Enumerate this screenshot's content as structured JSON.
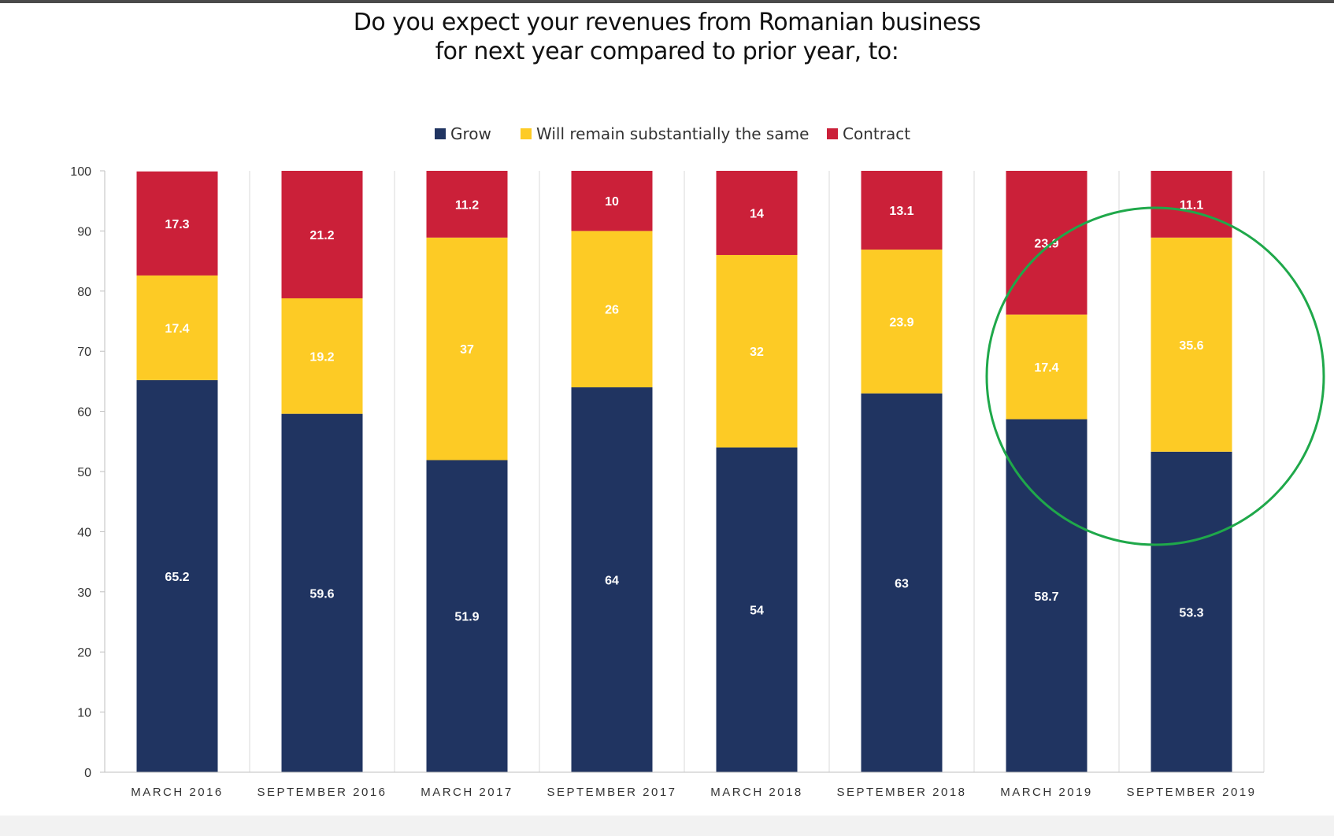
{
  "title_lines": [
    "Do you expect your revenues from Romanian business",
    "for next year compared to prior year, to:"
  ],
  "chart_data": {
    "type": "bar",
    "stacked": true,
    "title": "Do you expect your revenues from Romanian business for next year compared to prior year, to:",
    "categories": [
      "MARCH 2016",
      "SEPTEMBER 2016",
      "MARCH 2017",
      "SEPTEMBER 2017",
      "MARCH 2018",
      "SEPTEMBER 2018",
      "MARCH 2019",
      "SEPTEMBER 2019"
    ],
    "series": [
      {
        "name": "Grow",
        "color": "#203461",
        "values": [
          65.2,
          59.6,
          51.9,
          64,
          54,
          63,
          58.7,
          53.3
        ]
      },
      {
        "name": "Will remain substantially the same",
        "color": "#fdcb25",
        "values": [
          17.4,
          19.2,
          37,
          26,
          32,
          23.9,
          17.4,
          35.6
        ]
      },
      {
        "name": "Contract",
        "color": "#cb2039",
        "values": [
          17.3,
          21.2,
          11.2,
          10,
          14,
          13.1,
          23.9,
          11.1
        ]
      }
    ],
    "ylim": [
      0,
      100
    ],
    "yticks": [
      0,
      10,
      20,
      30,
      40,
      50,
      60,
      70,
      80,
      90,
      100
    ],
    "xlabel": "",
    "ylabel": "",
    "legend_position": "top-center",
    "vertical_gridlines": true,
    "annotation": {
      "type": "circle",
      "color": "#1fa84a",
      "highlights": [
        "MARCH 2019",
        "SEPTEMBER 2019"
      ]
    }
  }
}
